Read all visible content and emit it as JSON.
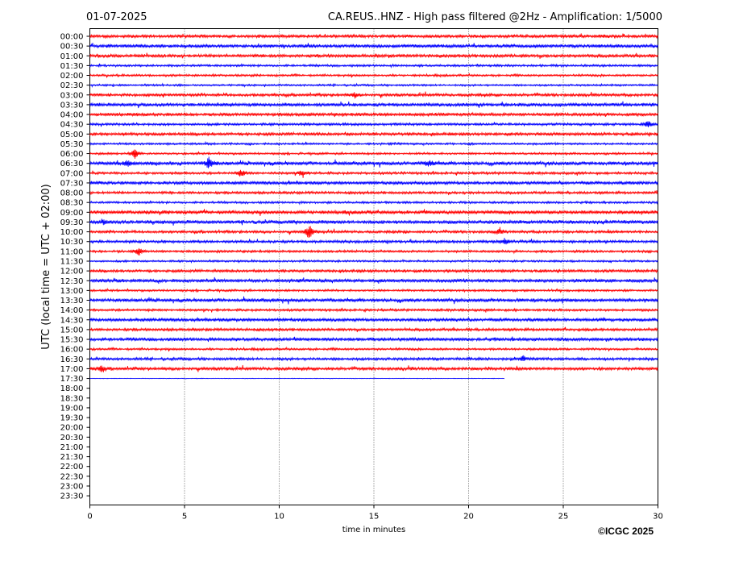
{
  "header": {
    "date": "01-07-2025",
    "title": "CA.REUS..HNZ - High pass filtered @2Hz - Amplification: 1/5000"
  },
  "footer": {
    "copyright": "©ICGC 2025"
  },
  "colors": {
    "odd_trace": "#ff0000",
    "even_trace": "#0000ff",
    "grid": "#000000"
  },
  "chart_data": {
    "type": "line",
    "title": "CA.REUS..HNZ - High pass filtered @2Hz - Amplification: 1/5000",
    "xlabel": "time in minutes",
    "ylabel": "UTC (local time = UTC + 02:00)",
    "xlim": [
      0,
      30
    ],
    "x_ticks": [
      "0",
      "5",
      "10",
      "15",
      "20",
      "25",
      "30"
    ],
    "x_tick_values": [
      0,
      5,
      10,
      15,
      20,
      25,
      30
    ],
    "grid": "vertical dotted lines at x ticks",
    "rows": [
      "00:00",
      "00:30",
      "01:00",
      "01:30",
      "02:00",
      "02:30",
      "03:00",
      "03:30",
      "04:00",
      "04:30",
      "05:00",
      "05:30",
      "06:00",
      "06:30",
      "07:00",
      "07:30",
      "08:00",
      "08:30",
      "09:00",
      "09:30",
      "10:00",
      "10:30",
      "11:00",
      "11:30",
      "12:00",
      "12:30",
      "13:00",
      "13:30",
      "14:00",
      "14:30",
      "15:00",
      "15:30",
      "16:00",
      "16:30",
      "17:00",
      "17:30",
      "18:00",
      "18:30",
      "19:00",
      "19:30",
      "20:00",
      "20:30",
      "21:00",
      "21:30",
      "22:00",
      "22:30",
      "23:00",
      "23:30"
    ],
    "trace_end_minutes": [
      30,
      30,
      30,
      30,
      30,
      30,
      30,
      30,
      30,
      30,
      30,
      30,
      30,
      30,
      30,
      30,
      30,
      30,
      30,
      30,
      30,
      30,
      30,
      30,
      30,
      30,
      30,
      30,
      30,
      30,
      30,
      30,
      30,
      30,
      30,
      21.9,
      0,
      0,
      0,
      0,
      0,
      0,
      0,
      0,
      0,
      0,
      0,
      0
    ],
    "events": [
      {
        "row": "06:00",
        "minute": 2.4,
        "amplitude": 0.9
      },
      {
        "row": "06:30",
        "minute": 2.0,
        "amplitude": 0.6
      },
      {
        "row": "06:30",
        "minute": 6.3,
        "amplitude": 1.2
      },
      {
        "row": "06:30",
        "minute": 17.9,
        "amplitude": 0.6
      },
      {
        "row": "07:00",
        "minute": 8.0,
        "amplitude": 0.7
      },
      {
        "row": "07:00",
        "minute": 11.2,
        "amplitude": 0.7
      },
      {
        "row": "10:00",
        "minute": 11.6,
        "amplitude": 1.6
      },
      {
        "row": "10:00",
        "minute": 21.6,
        "amplitude": 0.6
      },
      {
        "row": "10:30",
        "minute": 21.9,
        "amplitude": 0.6
      },
      {
        "row": "11:00",
        "minute": 2.6,
        "amplitude": 0.8
      },
      {
        "row": "09:30",
        "minute": 0.7,
        "amplitude": 0.5
      },
      {
        "row": "04:30",
        "minute": 29.5,
        "amplitude": 0.6
      },
      {
        "row": "03:00",
        "minute": 14.0,
        "amplitude": 0.5
      },
      {
        "row": "16:30",
        "minute": 22.9,
        "amplitude": 0.5
      },
      {
        "row": "17:00",
        "minute": 0.6,
        "amplitude": 0.6
      }
    ]
  }
}
